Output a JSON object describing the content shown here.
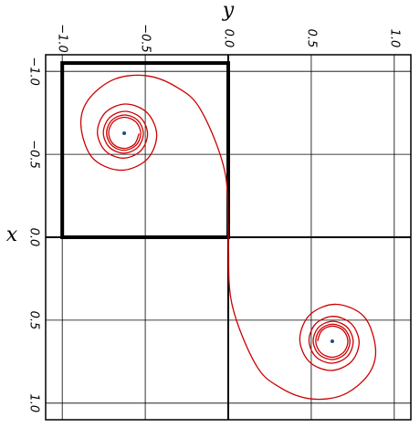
{
  "chart_data": {
    "type": "parametric",
    "xlabel": "x",
    "ylabel": "y",
    "xlim": [
      -1.1,
      1.1
    ],
    "ylim": [
      -1.1,
      1.1
    ],
    "xticks": [
      {
        "value": -1,
        "label": "−1.0"
      },
      {
        "value": -0.5,
        "label": "−0.5"
      },
      {
        "value": 0,
        "label": "0.0"
      },
      0.5,
      {
        "value": 1,
        "label": "1.0"
      }
    ],
    "yticks": [
      {
        "value": -1,
        "label": "−1.0"
      },
      {
        "value": -0.5,
        "label": "−0.5"
      },
      {
        "value": 0,
        "label": "0.0"
      },
      0.5,
      {
        "value": 1,
        "label": "1.0"
      }
    ],
    "grid": true,
    "series": [
      {
        "color": "#cc0000",
        "x": [
          -0.6252,
          -0.5618,
          -0.5352,
          -0.5623,
          -0.6283,
          -0.6953,
          -0.7233,
          -0.6947,
          -0.6247,
          -0.5536,
          -0.5238,
          -0.5543,
          -0.6291,
          -0.7051,
          -0.7371,
          -0.7043,
          -0.6236,
          -0.5414,
          -0.5067,
          -0.5425,
          -0.6307,
          -0.721,
          -0.7591,
          -0.7194,
          -0.6211,
          -0.5198,
          -0.4768,
          -0.5222,
          -0.6353,
          -0.7527,
          -0.8029,
          -0.7482,
          -0.6108,
          -0.4659,
          -0.4041,
          -0.4797,
          -0.6716,
          -0.8255,
          -0.9498,
          -0.9739,
          -0.9045,
          -0.7678,
          -0.399,
          0,
          0.399,
          0.7678,
          0.9045,
          0.9739,
          0.9498,
          0.8255,
          0.6716,
          0.4797,
          0.4041,
          0.4659,
          0.6108,
          0.7482,
          0.8029,
          0.7527,
          0.6353,
          0.5222,
          0.4768,
          0.5198,
          0.6211,
          0.7194,
          0.7591,
          0.721,
          0.6307,
          0.5425,
          0.5067,
          0.5414,
          0.6236,
          0.7043,
          0.7371,
          0.7051,
          0.6291,
          0.5543,
          0.5238,
          0.5536,
          0.6247,
          0.6947,
          0.7233,
          0.6953,
          0.6283,
          0.5623,
          0.5352,
          0.5618,
          0.6252
        ],
        "y": [
          -0.5375,
          -0.5639,
          -0.6282,
          -0.6933,
          -0.7206,
          -0.6928,
          -0.6249,
          -0.556,
          -0.527,
          -0.5566,
          -0.6289,
          -0.7023,
          -0.7331,
          -0.7015,
          -0.624,
          -0.545,
          -0.5117,
          -0.546,
          -0.6301,
          -0.7161,
          -0.7524,
          -0.7148,
          -0.622,
          -0.5267,
          -0.4863,
          -0.5286,
          -0.6335,
          -0.7419,
          -0.7882,
          -0.7388,
          -0.6153,
          -0.4863,
          -0.431,
          -0.4933,
          -0.6511,
          -0.8191,
          -0.8873,
          -0.8453,
          -0.6924,
          -0.4961,
          -0.3103,
          -0.1657,
          -0.0213,
          0,
          0.0213,
          0.1657,
          0.3103,
          0.4961,
          0.6924,
          0.8453,
          0.8873,
          0.8191,
          0.6511,
          0.4933,
          0.431,
          0.4863,
          0.6153,
          0.7388,
          0.7882,
          0.7419,
          0.6335,
          0.5286,
          0.4863,
          0.5267,
          0.622,
          0.7148,
          0.7524,
          0.7161,
          0.6301,
          0.546,
          0.5117,
          0.545,
          0.624,
          0.7015,
          0.7331,
          0.7023,
          0.6289,
          0.5566,
          0.527,
          0.556,
          0.6249,
          0.6928,
          0.7206,
          0.6933,
          0.6282,
          0.5639,
          0.5375
        ]
      }
    ],
    "markers": {
      "color": "#1f4e79",
      "x": [
        -0.6267,
        0.6267
      ],
      "y": [
        -0.6267,
        0.6267
      ]
    },
    "box": {
      "xlim": [
        -1.05,
        0
      ],
      "ylim": [
        -1,
        0
      ]
    }
  }
}
